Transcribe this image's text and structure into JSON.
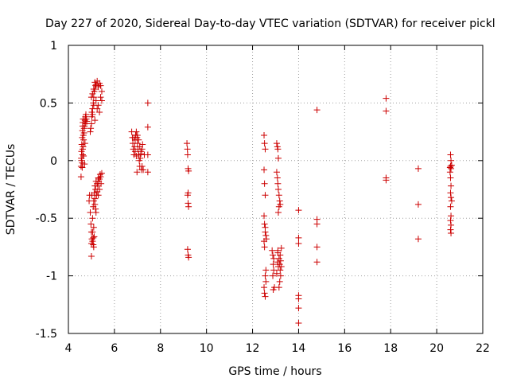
{
  "chart_data": {
    "type": "scatter",
    "title": "Day 227 of 2020, Sidereal Day-to-day VTEC variation (SDTVAR) for receiver pickl",
    "xlabel": "GPS time / hours",
    "ylabel": "SDTVAR / TECUs",
    "xlim": [
      4,
      22
    ],
    "ylim": [
      -1.5,
      1
    ],
    "xticks": [
      4,
      6,
      8,
      10,
      12,
      14,
      16,
      18,
      20,
      22
    ],
    "xtick_labels": [
      "4",
      "6",
      "8",
      "10",
      "12",
      "14",
      "16",
      "18",
      "20",
      "22"
    ],
    "yticks": [
      1,
      0.5,
      0,
      -0.5,
      -1,
      -1.5
    ],
    "ytick_labels": [
      "1",
      "0.5",
      "0",
      "-0.5",
      "-1",
      "-1.5"
    ],
    "grid": true,
    "marker": "+",
    "color": "#cc0000",
    "series": [
      {
        "name": "SDTVAR",
        "points": [
          [
            4.55,
            -0.14
          ],
          [
            4.55,
            -0.05
          ],
          [
            4.56,
            0.02
          ],
          [
            4.57,
            0.08
          ],
          [
            4.58,
            0.14
          ],
          [
            4.6,
            0.2
          ],
          [
            4.61,
            0.26
          ],
          [
            4.62,
            0.3
          ],
          [
            4.63,
            0.33
          ],
          [
            4.64,
            0.36
          ],
          [
            4.6,
            -0.02
          ],
          [
            4.62,
            0.05
          ],
          [
            4.64,
            0.12
          ],
          [
            4.66,
            0.18
          ],
          [
            4.68,
            0.24
          ],
          [
            4.7,
            0.3
          ],
          [
            4.72,
            0.35
          ],
          [
            4.74,
            0.38
          ],
          [
            4.76,
            0.4
          ],
          [
            4.78,
            0.36
          ],
          [
            4.58,
            0.0
          ],
          [
            4.6,
            -0.06
          ],
          [
            4.62,
            0.1
          ],
          [
            4.65,
            0.22
          ],
          [
            4.68,
            0.28
          ],
          [
            4.7,
            -0.03
          ],
          [
            4.72,
            0.15
          ],
          [
            4.75,
            0.32
          ],
          [
            4.8,
            0.34
          ],
          [
            4.66,
            0.04
          ],
          [
            4.9,
            -0.35
          ],
          [
            4.92,
            -0.3
          ],
          [
            4.95,
            -0.45
          ],
          [
            4.98,
            -0.55
          ],
          [
            5.0,
            -0.62
          ],
          [
            5.02,
            -0.68
          ],
          [
            5.05,
            -0.7
          ],
          [
            5.08,
            -0.73
          ],
          [
            5.1,
            -0.75
          ],
          [
            5.12,
            -0.66
          ],
          [
            5.0,
            -0.83
          ],
          [
            5.05,
            -0.5
          ],
          [
            5.08,
            -0.4
          ],
          [
            5.1,
            -0.35
          ],
          [
            5.12,
            -0.28
          ],
          [
            5.15,
            -0.38
          ],
          [
            5.18,
            -0.42
          ],
          [
            5.2,
            -0.45
          ],
          [
            5.22,
            -0.3
          ],
          [
            5.25,
            -0.2
          ],
          [
            5.28,
            -0.22
          ],
          [
            5.3,
            -0.15
          ],
          [
            5.32,
            -0.18
          ],
          [
            5.35,
            -0.25
          ],
          [
            5.38,
            -0.12
          ],
          [
            5.4,
            -0.14
          ],
          [
            5.42,
            -0.2
          ],
          [
            5.45,
            -0.11
          ],
          [
            5.15,
            -0.22
          ],
          [
            5.2,
            -0.18
          ],
          [
            5.02,
            -0.3
          ],
          [
            5.05,
            -0.62
          ],
          [
            5.1,
            -0.58
          ],
          [
            5.15,
            -0.33
          ],
          [
            5.18,
            -0.25
          ],
          [
            5.25,
            -0.27
          ],
          [
            5.3,
            -0.3
          ],
          [
            5.35,
            -0.16
          ],
          [
            5.0,
            -0.72
          ],
          [
            5.08,
            -0.67
          ],
          [
            4.95,
            0.25
          ],
          [
            4.97,
            0.28
          ],
          [
            5.0,
            0.32
          ],
          [
            5.02,
            0.38
          ],
          [
            5.05,
            0.45
          ],
          [
            5.08,
            0.5
          ],
          [
            5.1,
            0.55
          ],
          [
            5.12,
            0.6
          ],
          [
            5.15,
            0.62
          ],
          [
            5.18,
            0.65
          ],
          [
            5.0,
            0.55
          ],
          [
            5.05,
            0.58
          ],
          [
            5.1,
            0.62
          ],
          [
            5.15,
            0.68
          ],
          [
            5.2,
            0.66
          ],
          [
            5.25,
            0.69
          ],
          [
            5.3,
            0.64
          ],
          [
            5.35,
            0.67
          ],
          [
            5.4,
            0.65
          ],
          [
            5.45,
            0.6
          ],
          [
            5.2,
            0.52
          ],
          [
            5.25,
            0.45
          ],
          [
            5.3,
            0.48
          ],
          [
            5.35,
            0.42
          ],
          [
            5.4,
            0.55
          ],
          [
            5.45,
            0.52
          ],
          [
            5.1,
            0.48
          ],
          [
            5.05,
            0.4
          ],
          [
            5.15,
            0.35
          ],
          [
            5.02,
            0.42
          ],
          [
            6.75,
            0.25
          ],
          [
            6.78,
            0.2
          ],
          [
            6.8,
            0.15
          ],
          [
            6.82,
            0.1
          ],
          [
            6.85,
            0.05
          ],
          [
            6.88,
            0.12
          ],
          [
            6.9,
            0.18
          ],
          [
            6.92,
            0.22
          ],
          [
            6.95,
            0.25
          ],
          [
            6.98,
            0.2
          ],
          [
            7.0,
            0.15
          ],
          [
            7.02,
            0.1
          ],
          [
            7.05,
            0.05
          ],
          [
            7.08,
            0.0
          ],
          [
            7.1,
            -0.05
          ],
          [
            7.12,
            0.02
          ],
          [
            7.15,
            0.08
          ],
          [
            7.18,
            -0.08
          ],
          [
            7.2,
            0.1
          ],
          [
            7.22,
            0.14
          ],
          [
            6.85,
            0.2
          ],
          [
            6.9,
            0.08
          ],
          [
            6.95,
            0.04
          ],
          [
            7.0,
            0.22
          ],
          [
            7.05,
            0.18
          ],
          [
            7.1,
            0.12
          ],
          [
            7.15,
            0.06
          ],
          [
            7.2,
            -0.05
          ],
          [
            7.25,
            -0.08
          ],
          [
            6.98,
            -0.1
          ],
          [
            7.3,
            0.05
          ],
          [
            7.45,
            0.5
          ],
          [
            7.45,
            0.29
          ],
          [
            7.45,
            0.05
          ],
          [
            7.45,
            -0.1
          ],
          [
            9.15,
            0.15
          ],
          [
            9.17,
            0.1
          ],
          [
            9.18,
            0.05
          ],
          [
            9.2,
            -0.07
          ],
          [
            9.22,
            -0.09
          ],
          [
            9.2,
            -0.28
          ],
          [
            9.18,
            -0.3
          ],
          [
            9.2,
            -0.37
          ],
          [
            9.22,
            -0.4
          ],
          [
            9.18,
            -0.77
          ],
          [
            9.2,
            -0.82
          ],
          [
            9.22,
            -0.84
          ],
          [
            12.5,
            0.22
          ],
          [
            12.52,
            0.15
          ],
          [
            12.55,
            0.1
          ],
          [
            12.5,
            -0.08
          ],
          [
            12.52,
            -0.2
          ],
          [
            12.55,
            -0.3
          ],
          [
            12.5,
            -0.48
          ],
          [
            12.52,
            -0.55
          ],
          [
            12.55,
            -0.62
          ],
          [
            12.58,
            -0.65
          ],
          [
            12.5,
            -0.7
          ],
          [
            12.52,
            -0.75
          ],
          [
            12.55,
            -1.0
          ],
          [
            12.58,
            -1.05
          ],
          [
            12.5,
            -1.1
          ],
          [
            12.52,
            -1.15
          ],
          [
            12.55,
            -1.18
          ],
          [
            12.58,
            -0.95
          ],
          [
            12.55,
            -0.58
          ],
          [
            12.6,
            -0.68
          ],
          [
            12.85,
            -0.78
          ],
          [
            12.88,
            -0.82
          ],
          [
            12.9,
            -0.9
          ],
          [
            12.92,
            -0.95
          ],
          [
            12.95,
            -1.1
          ],
          [
            12.9,
            -1.12
          ],
          [
            12.88,
            -1.0
          ],
          [
            12.92,
            -0.85
          ],
          [
            13.05,
            0.15
          ],
          [
            13.08,
            0.12
          ],
          [
            13.1,
            0.1
          ],
          [
            13.12,
            0.02
          ],
          [
            13.05,
            -0.1
          ],
          [
            13.08,
            -0.15
          ],
          [
            13.1,
            -0.2
          ],
          [
            13.12,
            -0.25
          ],
          [
            13.15,
            -0.3
          ],
          [
            13.18,
            -0.35
          ],
          [
            13.2,
            -0.38
          ],
          [
            13.15,
            -0.4
          ],
          [
            13.12,
            -0.45
          ],
          [
            13.1,
            -0.8
          ],
          [
            13.15,
            -0.85
          ],
          [
            13.18,
            -0.9
          ],
          [
            13.2,
            -0.95
          ],
          [
            13.22,
            -1.0
          ],
          [
            13.18,
            -1.05
          ],
          [
            13.15,
            -1.1
          ],
          [
            13.1,
            -0.78
          ],
          [
            13.08,
            -0.88
          ],
          [
            13.12,
            -0.92
          ],
          [
            13.2,
            -0.82
          ],
          [
            13.25,
            -0.76
          ],
          [
            13.22,
            -0.87
          ],
          [
            13.05,
            -0.98
          ],
          [
            13.25,
            -0.92
          ],
          [
            14.0,
            -0.43
          ],
          [
            14.0,
            -0.67
          ],
          [
            14.0,
            -0.72
          ],
          [
            14.0,
            -1.17
          ],
          [
            14.0,
            -1.2
          ],
          [
            14.0,
            -1.28
          ],
          [
            14.0,
            -1.41
          ],
          [
            14.8,
            0.44
          ],
          [
            14.8,
            -0.51
          ],
          [
            14.8,
            -0.55
          ],
          [
            14.8,
            -0.75
          ],
          [
            14.8,
            -0.88
          ],
          [
            17.8,
            0.54
          ],
          [
            17.8,
            0.43
          ],
          [
            17.8,
            -0.15
          ],
          [
            17.8,
            -0.17
          ],
          [
            19.2,
            -0.07
          ],
          [
            19.2,
            -0.38
          ],
          [
            19.2,
            -0.68
          ],
          [
            20.6,
            0.05
          ],
          [
            20.62,
            0.0
          ],
          [
            20.6,
            -0.05
          ],
          [
            20.62,
            -0.07
          ],
          [
            20.58,
            -0.06
          ],
          [
            20.65,
            -0.04
          ],
          [
            20.6,
            -0.15
          ],
          [
            20.62,
            -0.22
          ],
          [
            20.6,
            -0.28
          ],
          [
            20.62,
            -0.32
          ],
          [
            20.6,
            -0.4
          ],
          [
            20.62,
            -0.48
          ],
          [
            20.6,
            -0.52
          ],
          [
            20.62,
            -0.56
          ],
          [
            20.6,
            -0.6
          ],
          [
            20.62,
            -0.63
          ],
          [
            20.58,
            -0.1
          ],
          [
            20.65,
            -0.35
          ]
        ]
      }
    ]
  }
}
